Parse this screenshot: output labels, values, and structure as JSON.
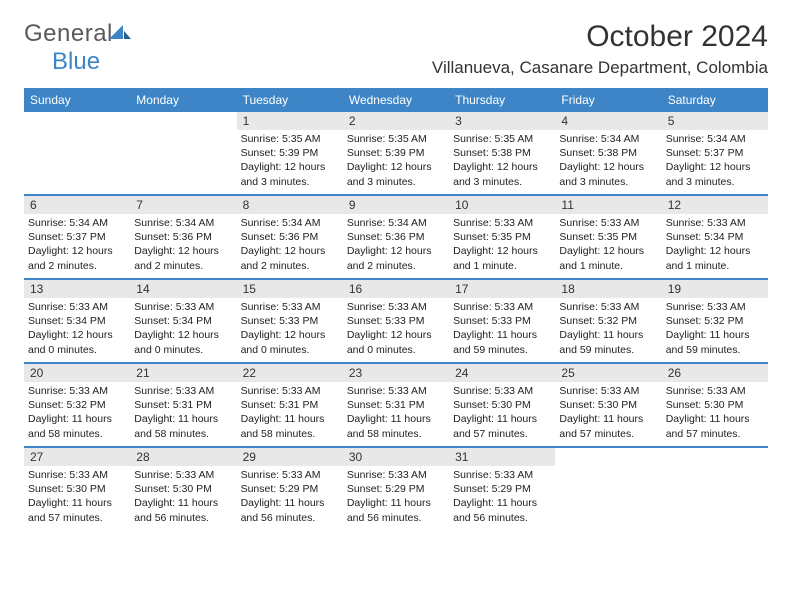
{
  "logo": {
    "word1": "General",
    "word2": "Blue"
  },
  "title": "October 2024",
  "location": "Villanueva, Casanare Department, Colombia",
  "colors": {
    "header_bg": "#3d85c6",
    "daynum_bg": "#e8e8e8",
    "border": "#3d85c6",
    "text": "#222222"
  },
  "weekdays": [
    "Sunday",
    "Monday",
    "Tuesday",
    "Wednesday",
    "Thursday",
    "Friday",
    "Saturday"
  ],
  "weeks": [
    [
      null,
      null,
      {
        "num": "1",
        "sunrise": "Sunrise: 5:35 AM",
        "sunset": "Sunset: 5:39 PM",
        "daylight": "Daylight: 12 hours and 3 minutes."
      },
      {
        "num": "2",
        "sunrise": "Sunrise: 5:35 AM",
        "sunset": "Sunset: 5:39 PM",
        "daylight": "Daylight: 12 hours and 3 minutes."
      },
      {
        "num": "3",
        "sunrise": "Sunrise: 5:35 AM",
        "sunset": "Sunset: 5:38 PM",
        "daylight": "Daylight: 12 hours and 3 minutes."
      },
      {
        "num": "4",
        "sunrise": "Sunrise: 5:34 AM",
        "sunset": "Sunset: 5:38 PM",
        "daylight": "Daylight: 12 hours and 3 minutes."
      },
      {
        "num": "5",
        "sunrise": "Sunrise: 5:34 AM",
        "sunset": "Sunset: 5:37 PM",
        "daylight": "Daylight: 12 hours and 3 minutes."
      }
    ],
    [
      {
        "num": "6",
        "sunrise": "Sunrise: 5:34 AM",
        "sunset": "Sunset: 5:37 PM",
        "daylight": "Daylight: 12 hours and 2 minutes."
      },
      {
        "num": "7",
        "sunrise": "Sunrise: 5:34 AM",
        "sunset": "Sunset: 5:36 PM",
        "daylight": "Daylight: 12 hours and 2 minutes."
      },
      {
        "num": "8",
        "sunrise": "Sunrise: 5:34 AM",
        "sunset": "Sunset: 5:36 PM",
        "daylight": "Daylight: 12 hours and 2 minutes."
      },
      {
        "num": "9",
        "sunrise": "Sunrise: 5:34 AM",
        "sunset": "Sunset: 5:36 PM",
        "daylight": "Daylight: 12 hours and 2 minutes."
      },
      {
        "num": "10",
        "sunrise": "Sunrise: 5:33 AM",
        "sunset": "Sunset: 5:35 PM",
        "daylight": "Daylight: 12 hours and 1 minute."
      },
      {
        "num": "11",
        "sunrise": "Sunrise: 5:33 AM",
        "sunset": "Sunset: 5:35 PM",
        "daylight": "Daylight: 12 hours and 1 minute."
      },
      {
        "num": "12",
        "sunrise": "Sunrise: 5:33 AM",
        "sunset": "Sunset: 5:34 PM",
        "daylight": "Daylight: 12 hours and 1 minute."
      }
    ],
    [
      {
        "num": "13",
        "sunrise": "Sunrise: 5:33 AM",
        "sunset": "Sunset: 5:34 PM",
        "daylight": "Daylight: 12 hours and 0 minutes."
      },
      {
        "num": "14",
        "sunrise": "Sunrise: 5:33 AM",
        "sunset": "Sunset: 5:34 PM",
        "daylight": "Daylight: 12 hours and 0 minutes."
      },
      {
        "num": "15",
        "sunrise": "Sunrise: 5:33 AM",
        "sunset": "Sunset: 5:33 PM",
        "daylight": "Daylight: 12 hours and 0 minutes."
      },
      {
        "num": "16",
        "sunrise": "Sunrise: 5:33 AM",
        "sunset": "Sunset: 5:33 PM",
        "daylight": "Daylight: 12 hours and 0 minutes."
      },
      {
        "num": "17",
        "sunrise": "Sunrise: 5:33 AM",
        "sunset": "Sunset: 5:33 PM",
        "daylight": "Daylight: 11 hours and 59 minutes."
      },
      {
        "num": "18",
        "sunrise": "Sunrise: 5:33 AM",
        "sunset": "Sunset: 5:32 PM",
        "daylight": "Daylight: 11 hours and 59 minutes."
      },
      {
        "num": "19",
        "sunrise": "Sunrise: 5:33 AM",
        "sunset": "Sunset: 5:32 PM",
        "daylight": "Daylight: 11 hours and 59 minutes."
      }
    ],
    [
      {
        "num": "20",
        "sunrise": "Sunrise: 5:33 AM",
        "sunset": "Sunset: 5:32 PM",
        "daylight": "Daylight: 11 hours and 58 minutes."
      },
      {
        "num": "21",
        "sunrise": "Sunrise: 5:33 AM",
        "sunset": "Sunset: 5:31 PM",
        "daylight": "Daylight: 11 hours and 58 minutes."
      },
      {
        "num": "22",
        "sunrise": "Sunrise: 5:33 AM",
        "sunset": "Sunset: 5:31 PM",
        "daylight": "Daylight: 11 hours and 58 minutes."
      },
      {
        "num": "23",
        "sunrise": "Sunrise: 5:33 AM",
        "sunset": "Sunset: 5:31 PM",
        "daylight": "Daylight: 11 hours and 58 minutes."
      },
      {
        "num": "24",
        "sunrise": "Sunrise: 5:33 AM",
        "sunset": "Sunset: 5:30 PM",
        "daylight": "Daylight: 11 hours and 57 minutes."
      },
      {
        "num": "25",
        "sunrise": "Sunrise: 5:33 AM",
        "sunset": "Sunset: 5:30 PM",
        "daylight": "Daylight: 11 hours and 57 minutes."
      },
      {
        "num": "26",
        "sunrise": "Sunrise: 5:33 AM",
        "sunset": "Sunset: 5:30 PM",
        "daylight": "Daylight: 11 hours and 57 minutes."
      }
    ],
    [
      {
        "num": "27",
        "sunrise": "Sunrise: 5:33 AM",
        "sunset": "Sunset: 5:30 PM",
        "daylight": "Daylight: 11 hours and 57 minutes."
      },
      {
        "num": "28",
        "sunrise": "Sunrise: 5:33 AM",
        "sunset": "Sunset: 5:30 PM",
        "daylight": "Daylight: 11 hours and 56 minutes."
      },
      {
        "num": "29",
        "sunrise": "Sunrise: 5:33 AM",
        "sunset": "Sunset: 5:29 PM",
        "daylight": "Daylight: 11 hours and 56 minutes."
      },
      {
        "num": "30",
        "sunrise": "Sunrise: 5:33 AM",
        "sunset": "Sunset: 5:29 PM",
        "daylight": "Daylight: 11 hours and 56 minutes."
      },
      {
        "num": "31",
        "sunrise": "Sunrise: 5:33 AM",
        "sunset": "Sunset: 5:29 PM",
        "daylight": "Daylight: 11 hours and 56 minutes."
      },
      null,
      null
    ]
  ]
}
